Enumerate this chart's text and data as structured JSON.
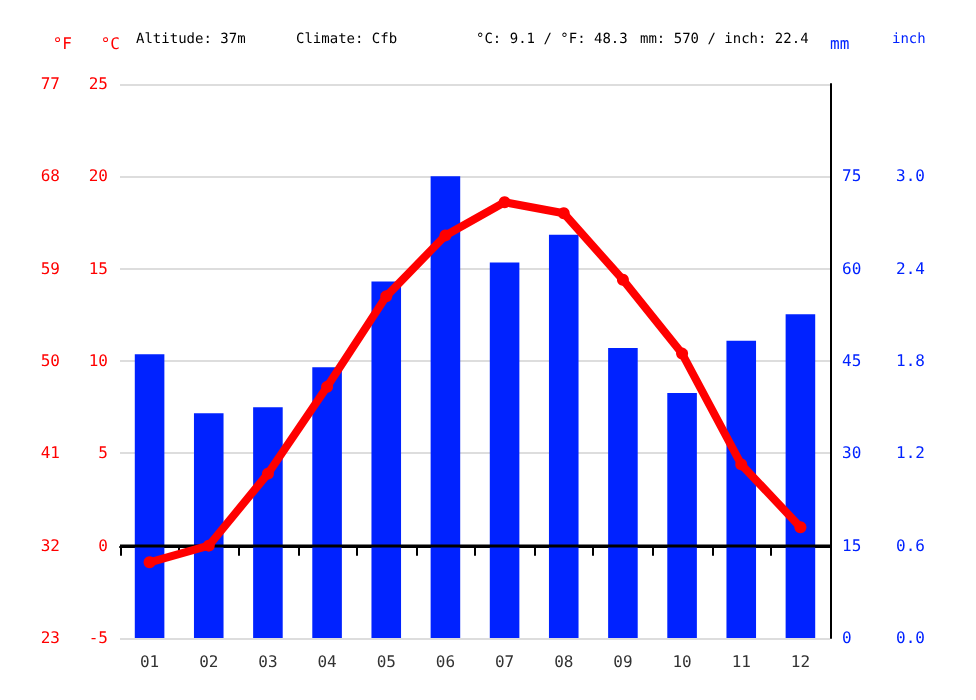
{
  "chart_data": {
    "type": "bar",
    "categories": [
      "01",
      "02",
      "03",
      "04",
      "05",
      "06",
      "07",
      "08",
      "09",
      "10",
      "11",
      "12"
    ],
    "series": [
      {
        "axis": "y2",
        "color": "#0022ff",
        "values": [
          46.1,
          36.5,
          37.5,
          44.0,
          57.9,
          75.0,
          61.0,
          65.5,
          47.1,
          39.8,
          48.3,
          52.6
        ]
      },
      {
        "type": "line",
        "axis": "y",
        "color": "#ff0000",
        "marker": "circle",
        "values": [
          -0.9,
          0.0,
          3.9,
          8.6,
          13.5,
          16.8,
          18.6,
          18.0,
          14.4,
          10.4,
          4.4,
          1.0
        ]
      }
    ],
    "ylabel": "°C",
    "ylim": [
      -5,
      25
    ],
    "yticks": [
      -5,
      0,
      5,
      10,
      15,
      20,
      25
    ],
    "y2label": "mm",
    "y2lim": [
      0,
      90
    ],
    "y2ticks": [
      0,
      15,
      30,
      45,
      60,
      75
    ],
    "y3label": "°F",
    "y3lim": [
      23,
      77
    ],
    "y3ticks": [
      23,
      32,
      41,
      50,
      59,
      68,
      77
    ],
    "ref_lines": [
      {
        "axis": "y",
        "value": 0,
        "color": "#000000"
      }
    ],
    "annotations": [
      "Altitude: 37m",
      "Climate: Cfb",
      "°C: 9.1 / °F: 48.3",
      "mm: 570 / inch: 22.4",
      "inch",
      "0.0",
      "0.6",
      "1.2",
      "1.8",
      "2.4",
      "3.0"
    ],
    "grid": "y"
  }
}
